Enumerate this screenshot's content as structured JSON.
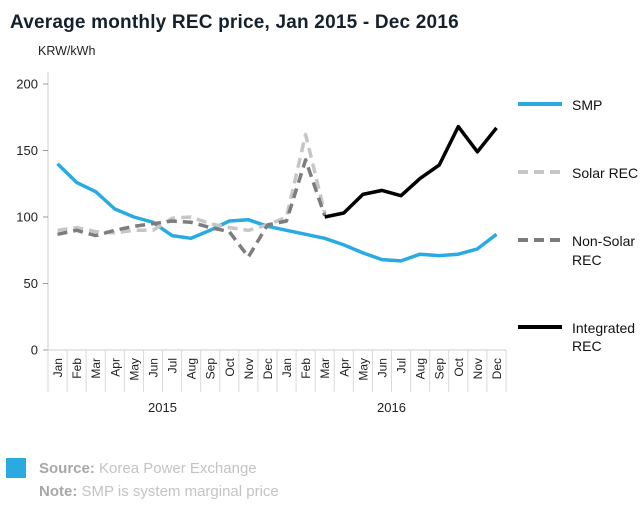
{
  "title": "Average monthly REC price, Jan 2015 - Dec 2016",
  "axis": {
    "unit_label": "KRW/kWh"
  },
  "legend": [
    {
      "name": "SMP",
      "color": "#29abe2",
      "dash": false
    },
    {
      "name": "Solar REC",
      "color": "#c6c6c6",
      "dash": true
    },
    {
      "name": "Non-Solar REC",
      "color": "#7d7d7d",
      "dash": true
    },
    {
      "name": "Integrated REC",
      "color": "#000000",
      "dash": false
    }
  ],
  "footer": {
    "source_label": "Source:",
    "source_text": "Korea Power Exchange",
    "note_label": "Note:",
    "note_text": "SMP is system marginal price",
    "square_color": "#29abe2"
  },
  "chart_data": {
    "type": "line",
    "title": "Average monthly REC price, Jan 2015 - Dec 2016",
    "ylabel": "KRW/kWh",
    "ylim": [
      0,
      200
    ],
    "yticks": [
      0,
      50,
      100,
      150,
      200
    ],
    "grid": false,
    "legend_position": "right",
    "categories": [
      "Jan",
      "Feb",
      "Mar",
      "Apr",
      "May",
      "Jun",
      "Jul",
      "Aug",
      "Sep",
      "Oct",
      "Nov",
      "Dec",
      "Jan",
      "Feb",
      "Mar",
      "Apr",
      "May",
      "Jun",
      "Jul",
      "Aug",
      "Sep",
      "Oct",
      "Nov",
      "Dec"
    ],
    "year_groups": [
      {
        "label": "2015",
        "from": 0,
        "to": 11
      },
      {
        "label": "2016",
        "from": 12,
        "to": 23
      }
    ],
    "series": [
      {
        "name": "SMP",
        "color": "#29abe2",
        "style": "solid",
        "values": [
          140,
          126,
          119,
          106,
          100,
          96,
          86,
          84,
          90,
          97,
          98,
          93,
          90,
          87,
          84,
          79,
          73,
          68,
          67,
          72,
          71,
          72,
          76,
          87
        ]
      },
      {
        "name": "Solar REC",
        "color": "#c6c6c6",
        "style": "dashed",
        "values": [
          90,
          92,
          89,
          88,
          90,
          90,
          99,
          100,
          95,
          92,
          90,
          94,
          100,
          162,
          103,
          null,
          null,
          null,
          null,
          null,
          null,
          null,
          null,
          null
        ]
      },
      {
        "name": "Non-Solar REC",
        "color": "#7d7d7d",
        "style": "dashed",
        "values": [
          87,
          90,
          86,
          90,
          93,
          95,
          97,
          96,
          92,
          89,
          70,
          94,
          97,
          143,
          101,
          null,
          null,
          null,
          null,
          null,
          null,
          null,
          null,
          null
        ]
      },
      {
        "name": "Integrated REC",
        "color": "#000000",
        "style": "solid",
        "values": [
          null,
          null,
          null,
          null,
          null,
          null,
          null,
          null,
          null,
          null,
          null,
          null,
          null,
          null,
          100,
          103,
          117,
          120,
          116,
          129,
          139,
          168,
          149,
          167
        ]
      }
    ]
  }
}
